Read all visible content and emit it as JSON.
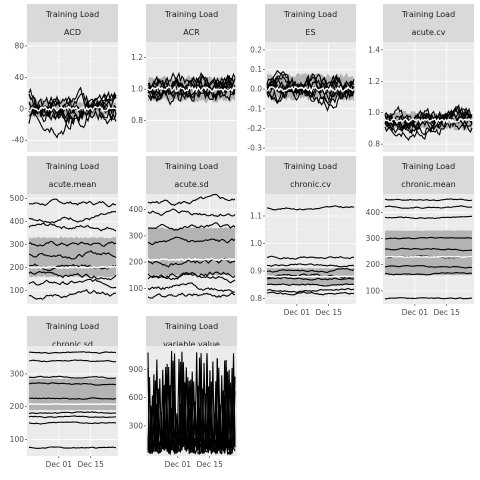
{
  "chart_data": [
    {
      "type": "line",
      "strip_top": "Training Load",
      "strip_bottom": "ACD",
      "ylim": [
        -55,
        85
      ],
      "yticks": [
        -40,
        0,
        40,
        80
      ],
      "xticks": [],
      "n_series": 9,
      "center": 0,
      "spread": 18,
      "band": [
        -10,
        10
      ],
      "median": 0,
      "noise": 12,
      "title": "",
      "xlabel": "",
      "ylabel": ""
    },
    {
      "type": "line",
      "strip_top": "Training Load",
      "strip_bottom": "ACR",
      "ylim": [
        0.6,
        1.3
      ],
      "yticks": [
        0.8,
        1.0,
        1.2
      ],
      "xticks": [],
      "n_series": 9,
      "center": 1.0,
      "spread": 0.06,
      "band": [
        0.93,
        1.07
      ],
      "median": 1.0,
      "noise": 0.06,
      "title": "",
      "xlabel": "",
      "ylabel": ""
    },
    {
      "type": "line",
      "strip_top": "Training Load",
      "strip_bottom": "ES",
      "ylim": [
        -0.32,
        0.24
      ],
      "yticks": [
        -0.3,
        -0.2,
        -0.1,
        0.0,
        0.1,
        0.2
      ],
      "xticks": [],
      "n_series": 9,
      "center": 0.0,
      "spread": 0.05,
      "band": [
        -0.05,
        0.07
      ],
      "median": 0.0,
      "noise": 0.05,
      "title": "",
      "xlabel": "",
      "ylabel": ""
    },
    {
      "type": "line",
      "strip_top": "Training Load",
      "strip_bottom": "acute.cv",
      "ylim": [
        0.75,
        1.45
      ],
      "yticks": [
        0.8,
        1.0,
        1.2,
        1.4
      ],
      "xticks": [],
      "n_series": 9,
      "center": 0.95,
      "spread": 0.05,
      "band": [
        0.9,
        1.0
      ],
      "median": 0.95,
      "noise": 0.05,
      "title": "",
      "xlabel": "",
      "ylabel": ""
    },
    {
      "type": "line",
      "strip_top": "Training Load",
      "strip_bottom": "acute.mean",
      "ylim": [
        40,
        520
      ],
      "yticks": [
        100,
        200,
        300,
        400,
        500
      ],
      "xticks": [],
      "n_series": 9,
      "levels": [
        480,
        420,
        380,
        300,
        260,
        210,
        170,
        130,
        80
      ],
      "band": [
        160,
        330
      ],
      "median": 200,
      "noise": 15,
      "title": "",
      "xlabel": "",
      "ylabel": ""
    },
    {
      "type": "line",
      "strip_top": "Training Load",
      "strip_bottom": "acute.sd",
      "ylim": [
        40,
        460
      ],
      "yticks": [
        100,
        200,
        300,
        400
      ],
      "xticks": [],
      "n_series": 9,
      "levels": [
        430,
        390,
        330,
        270,
        200,
        160,
        140,
        100,
        70
      ],
      "band": [
        150,
        330
      ],
      "median": 210,
      "noise": 14,
      "title": "",
      "xlabel": "",
      "ylabel": ""
    },
    {
      "type": "line",
      "strip_top": "Training Load",
      "strip_bottom": "chronic.cv",
      "ylim": [
        0.78,
        1.18
      ],
      "yticks": [
        0.8,
        0.9,
        1.0,
        1.1
      ],
      "xticks": [
        "Dec 01",
        "Dec 15"
      ],
      "n_series": 9,
      "levels": [
        1.13,
        0.95,
        0.92,
        0.9,
        0.88,
        0.87,
        0.85,
        0.83,
        0.82
      ],
      "band": [
        0.85,
        0.91
      ],
      "median": 0.88,
      "noise": 0.006,
      "title": "",
      "xlabel": "",
      "ylabel": ""
    },
    {
      "type": "line",
      "strip_top": "Training Load",
      "strip_bottom": "chronic.mean",
      "ylim": [
        50,
        470
      ],
      "yticks": [
        100,
        200,
        300,
        400
      ],
      "xticks": [
        "Dec 01",
        "Dec 15"
      ],
      "n_series": 9,
      "levels": [
        450,
        420,
        380,
        300,
        260,
        230,
        190,
        165,
        70
      ],
      "band": [
        160,
        330
      ],
      "median": 230,
      "noise": 4,
      "title": "",
      "xlabel": "",
      "ylabel": ""
    },
    {
      "type": "line",
      "strip_top": "Training Load",
      "strip_bottom": "chronic.sd",
      "ylim": [
        50,
        385
      ],
      "yticks": [
        100,
        200,
        300
      ],
      "xticks": [
        "Dec 01",
        "Dec 15"
      ],
      "n_series": 9,
      "levels": [
        365,
        340,
        290,
        270,
        225,
        180,
        170,
        150,
        75
      ],
      "band": [
        190,
        285
      ],
      "median": 208,
      "noise": 3,
      "title": "",
      "xlabel": "",
      "ylabel": ""
    },
    {
      "type": "line",
      "strip_top": "Training Load",
      "strip_bottom": "variable.value",
      "ylim": [
        -20,
        1150
      ],
      "yticks": [
        300,
        600,
        900
      ],
      "xticks": [
        "Dec 01",
        "Dec 15"
      ],
      "n_series": 9,
      "spiky": true,
      "title": "",
      "xlabel": "",
      "ylabel": ""
    }
  ]
}
